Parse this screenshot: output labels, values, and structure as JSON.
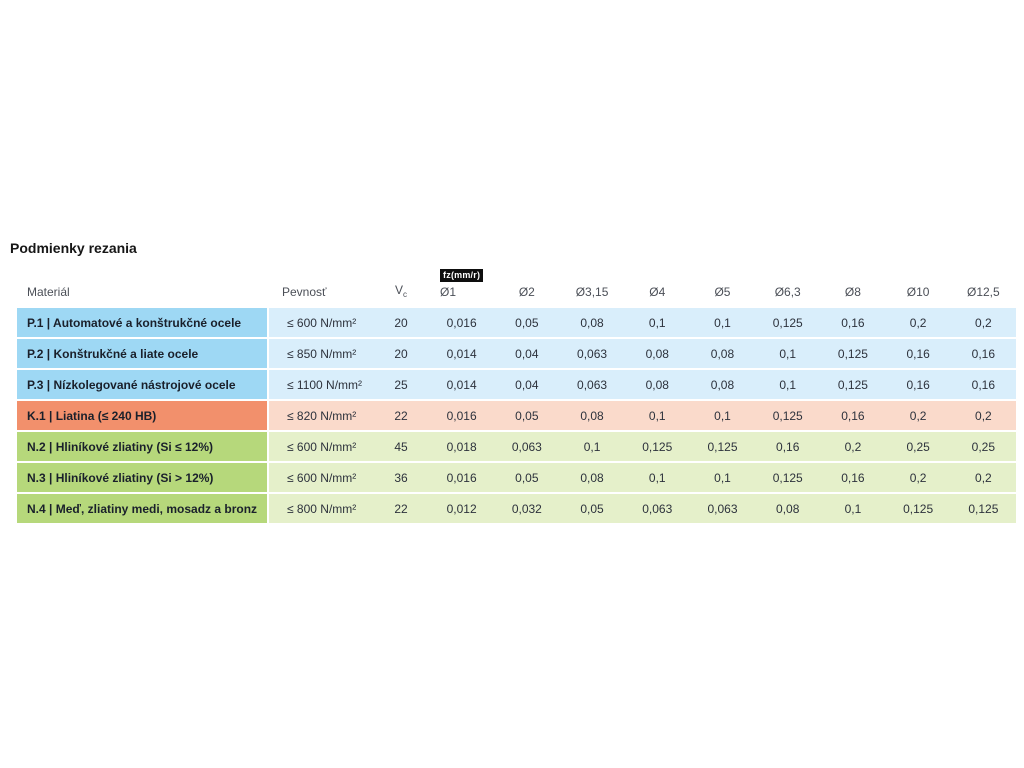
{
  "page": {
    "title": "Podmienky rezania"
  },
  "colors": {
    "steel_label_bg": "#9ed8f4",
    "steel_row_bg": "#d9eefb",
    "cast_iron_label_bg": "#f2906c",
    "cast_iron_row_bg": "#fadacb",
    "nonferrous_label_bg": "#b6d87b",
    "nonferrous_row_bg": "#e5f0ca",
    "fz_badge_bg": "#0e0e0e",
    "fz_badge_text": "#ffffff"
  },
  "table": {
    "headers": {
      "material": "Materiál",
      "strength": "Pevnosť",
      "vc_main": "V",
      "vc_sub": "c",
      "fz_badge": "fz(mm/r)",
      "diameters": [
        "Ø1",
        "Ø2",
        "Ø3,15",
        "Ø4",
        "Ø5",
        "Ø6,3",
        "Ø8",
        "Ø10",
        "Ø12,5"
      ]
    },
    "rows": [
      {
        "group": "steel",
        "material": "P.1 | Automatové a konštrukčné ocele",
        "strength": "≤ 600 N/mm²",
        "vc": "20",
        "values": [
          "0,016",
          "0,05",
          "0,08",
          "0,1",
          "0,1",
          "0,125",
          "0,16",
          "0,2",
          "0,2"
        ]
      },
      {
        "group": "steel",
        "material": "P.2 | Konštrukčné a liate ocele",
        "strength": "≤ 850 N/mm²",
        "vc": "20",
        "values": [
          "0,014",
          "0,04",
          "0,063",
          "0,08",
          "0,08",
          "0,1",
          "0,125",
          "0,16",
          "0,16"
        ]
      },
      {
        "group": "steel",
        "material": "P.3 | Nízkolegované nástrojové ocele",
        "strength": "≤ 1100 N/mm²",
        "vc": "25",
        "values": [
          "0,014",
          "0,04",
          "0,063",
          "0,08",
          "0,08",
          "0,1",
          "0,125",
          "0,16",
          "0,16"
        ]
      },
      {
        "group": "cast_iron",
        "material": "K.1 | Liatina (≤ 240 HB)",
        "strength": "≤ 820 N/mm²",
        "vc": "22",
        "values": [
          "0,016",
          "0,05",
          "0,08",
          "0,1",
          "0,1",
          "0,125",
          "0,16",
          "0,2",
          "0,2"
        ]
      },
      {
        "group": "nonferrous",
        "material": "N.2 | Hliníkové zliatiny (Si ≤ 12%)",
        "strength": "≤ 600 N/mm²",
        "vc": "45",
        "values": [
          "0,018",
          "0,063",
          "0,1",
          "0,125",
          "0,125",
          "0,16",
          "0,2",
          "0,25",
          "0,25"
        ]
      },
      {
        "group": "nonferrous",
        "material": "N.3 | Hliníkové zliatiny (Si > 12%)",
        "strength": "≤ 600 N/mm²",
        "vc": "36",
        "values": [
          "0,016",
          "0,05",
          "0,08",
          "0,1",
          "0,1",
          "0,125",
          "0,16",
          "0,2",
          "0,2"
        ]
      },
      {
        "group": "nonferrous",
        "material": "N.4 | Meď, zliatiny medi, mosadz a bronz",
        "strength": "≤ 800 N/mm²",
        "vc": "22",
        "values": [
          "0,012",
          "0,032",
          "0,05",
          "0,063",
          "0,063",
          "0,08",
          "0,1",
          "0,125",
          "0,125"
        ]
      }
    ]
  }
}
